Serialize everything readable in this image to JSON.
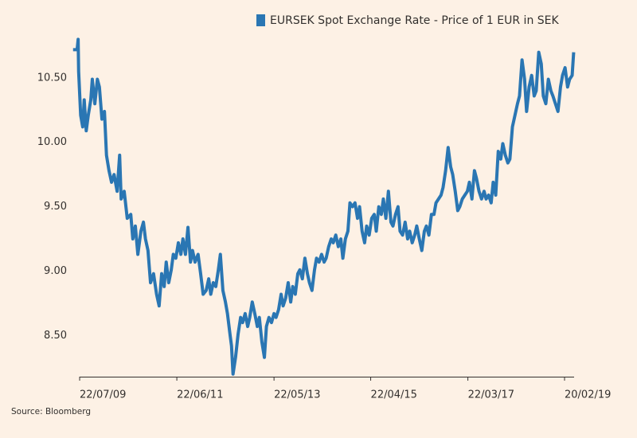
{
  "chart_data": {
    "type": "line",
    "series": [
      {
        "name": "EURSEK Spot Exchange Rate - Price of 1 EUR in SEK",
        "color": "#2a76b3",
        "values": [
          10.72,
          10.72,
          10.8,
          10.55,
          10.21,
          10.12,
          10.33,
          10.09,
          10.21,
          10.33,
          10.49,
          10.3,
          10.49,
          10.43,
          10.18,
          10.24,
          9.9,
          9.78,
          9.69,
          9.75,
          9.62,
          9.9,
          9.56,
          9.62,
          9.41,
          9.44,
          9.25,
          9.35,
          9.13,
          9.31,
          9.38,
          9.25,
          9.16,
          8.91,
          8.98,
          8.82,
          8.73,
          8.98,
          8.88,
          9.07,
          8.91,
          9.01,
          9.13,
          9.1,
          9.22,
          9.13,
          9.25,
          9.13,
          9.34,
          9.07,
          9.16,
          9.07,
          9.13,
          8.98,
          8.82,
          8.85,
          8.94,
          8.82,
          8.91,
          8.88,
          9.01,
          9.13,
          8.85,
          8.76,
          8.67,
          8.51,
          8.42,
          8.2,
          8.33,
          8.51,
          8.64,
          8.6,
          8.67,
          8.57,
          8.64,
          8.76,
          8.67,
          8.57,
          8.64,
          8.45,
          8.33,
          8.57,
          8.64,
          8.6,
          8.67,
          8.64,
          8.7,
          8.82,
          8.73,
          8.79,
          8.91,
          8.76,
          8.88,
          8.82,
          8.98,
          9.01,
          8.94,
          9.1,
          8.98,
          8.91,
          8.85,
          9.01,
          9.1,
          9.07,
          9.13,
          9.07,
          9.1,
          9.19,
          9.25,
          9.22,
          9.28,
          9.19,
          9.25,
          9.1,
          9.25,
          9.31,
          9.53,
          9.5,
          9.53,
          9.41,
          9.5,
          9.31,
          9.22,
          9.35,
          9.28,
          9.41,
          9.44,
          9.31,
          9.5,
          9.44,
          9.56,
          9.41,
          9.62,
          9.38,
          9.35,
          9.44,
          9.5,
          9.31,
          9.28,
          9.38,
          9.25,
          9.31,
          9.22,
          9.28,
          9.35,
          9.25,
          9.16,
          9.31,
          9.35,
          9.28,
          9.44,
          9.44,
          9.53,
          9.56,
          9.59,
          9.65,
          9.78,
          9.96,
          9.81,
          9.75,
          9.62,
          9.47,
          9.5,
          9.56,
          9.59,
          9.62,
          9.69,
          9.56,
          9.78,
          9.72,
          9.62,
          9.56,
          9.62,
          9.56,
          9.59,
          9.53,
          9.69,
          9.59,
          9.93,
          9.87,
          9.99,
          9.9,
          9.84,
          9.87,
          10.12,
          10.21,
          10.3,
          10.36,
          10.64,
          10.49,
          10.24,
          10.43,
          10.52,
          10.36,
          10.4,
          10.7,
          10.61,
          10.36,
          10.3,
          10.49,
          10.4,
          10.36,
          10.3,
          10.24,
          10.43,
          10.52,
          10.58,
          10.43,
          10.49,
          10.52,
          10.7
        ]
      }
    ],
    "x": [
      2009.42,
      2009.5,
      2009.52,
      2009.53,
      2009.57,
      2009.61,
      2009.64,
      2009.68,
      2009.72,
      2009.77,
      2009.8,
      2009.85,
      2009.9,
      2009.94,
      2009.99,
      2010.04,
      2010.08,
      2010.13,
      2010.18,
      2010.23,
      2010.29,
      2010.34,
      2010.37,
      2010.43,
      2010.49,
      2010.56,
      2010.6,
      2010.65,
      2010.7,
      2010.76,
      2010.81,
      2010.85,
      2010.9,
      2010.95,
      2011.01,
      2011.07,
      2011.12,
      2011.17,
      2011.22,
      2011.26,
      2011.31,
      2011.36,
      2011.4,
      2011.45,
      2011.5,
      2011.55,
      2011.59,
      2011.64,
      2011.69,
      2011.74,
      2011.78,
      2011.83,
      2011.89,
      2011.94,
      2011.99,
      2012.05,
      2012.1,
      2012.14,
      2012.19,
      2012.24,
      2012.29,
      2012.33,
      2012.38,
      2012.43,
      2012.47,
      2012.52,
      2012.55,
      2012.58,
      2012.63,
      2012.68,
      2012.73,
      2012.77,
      2012.82,
      2012.87,
      2012.91,
      2012.96,
      2013.01,
      2013.06,
      2013.1,
      2013.15,
      2013.2,
      2013.24,
      2013.29,
      2013.34,
      2013.39,
      2013.43,
      2013.48,
      2013.53,
      2013.57,
      2013.62,
      2013.67,
      2013.72,
      2013.76,
      2013.81,
      2013.86,
      2013.9,
      2013.95,
      2014.0,
      2014.05,
      2014.09,
      2014.14,
      2014.19,
      2014.23,
      2014.28,
      2014.33,
      2014.38,
      2014.42,
      2014.47,
      2014.52,
      2014.56,
      2014.61,
      2014.66,
      2014.71,
      2014.75,
      2014.8,
      2014.85,
      2014.89,
      2014.94,
      2014.99,
      2015.04,
      2015.08,
      2015.13,
      2015.18,
      2015.22,
      2015.27,
      2015.32,
      2015.37,
      2015.41,
      2015.46,
      2015.51,
      2015.55,
      2015.6,
      2015.65,
      2015.7,
      2015.74,
      2015.79,
      2015.84,
      2015.88,
      2015.93,
      2015.98,
      2016.03,
      2016.07,
      2016.12,
      2016.17,
      2016.21,
      2016.26,
      2016.31,
      2016.36,
      2016.4,
      2016.45,
      2016.5,
      2016.55,
      2016.59,
      2016.64,
      2016.69,
      2016.73,
      2016.78,
      2016.83,
      2016.88,
      2016.92,
      2016.97,
      2017.02,
      2017.06,
      2017.11,
      2017.16,
      2017.21,
      2017.25,
      2017.3,
      2017.35,
      2017.39,
      2017.44,
      2017.49,
      2017.54,
      2017.58,
      2017.63,
      2017.68,
      2017.72,
      2017.77,
      2017.82,
      2017.87,
      2017.91,
      2017.96,
      2018.01,
      2018.05,
      2018.1,
      2018.15,
      2018.2,
      2018.24,
      2018.29,
      2018.34,
      2018.38,
      2018.43,
      2018.48,
      2018.53,
      2018.57,
      2018.62,
      2018.67,
      2018.71,
      2018.76,
      2018.81,
      2018.86,
      2018.9,
      2018.95,
      2019.0,
      2019.05,
      2019.09,
      2019.14,
      2019.19,
      2019.23,
      2019.28,
      2019.31
    ],
    "xlim": [
      2009.4,
      2019.35
    ],
    "xticks": [
      {
        "value": 2009.55,
        "label": "22/07/09"
      },
      {
        "value": 2011.47,
        "label": "22/06/11"
      },
      {
        "value": 2013.39,
        "label": "22/05/13"
      },
      {
        "value": 2015.3,
        "label": "22/04/15"
      },
      {
        "value": 2017.22,
        "label": "22/03/17"
      },
      {
        "value": 2019.13,
        "label": "20/02/19"
      }
    ],
    "ylim": [
      8.18,
      10.8
    ],
    "yticks": [
      {
        "value": 8.5,
        "label": "8.50"
      },
      {
        "value": 9.0,
        "label": "9.00"
      },
      {
        "value": 9.5,
        "label": "9.50"
      },
      {
        "value": 10.0,
        "label": "10.00"
      },
      {
        "value": 10.5,
        "label": "10.50"
      }
    ],
    "grid": false,
    "legend": "top",
    "source": "Source: Bloomberg"
  }
}
